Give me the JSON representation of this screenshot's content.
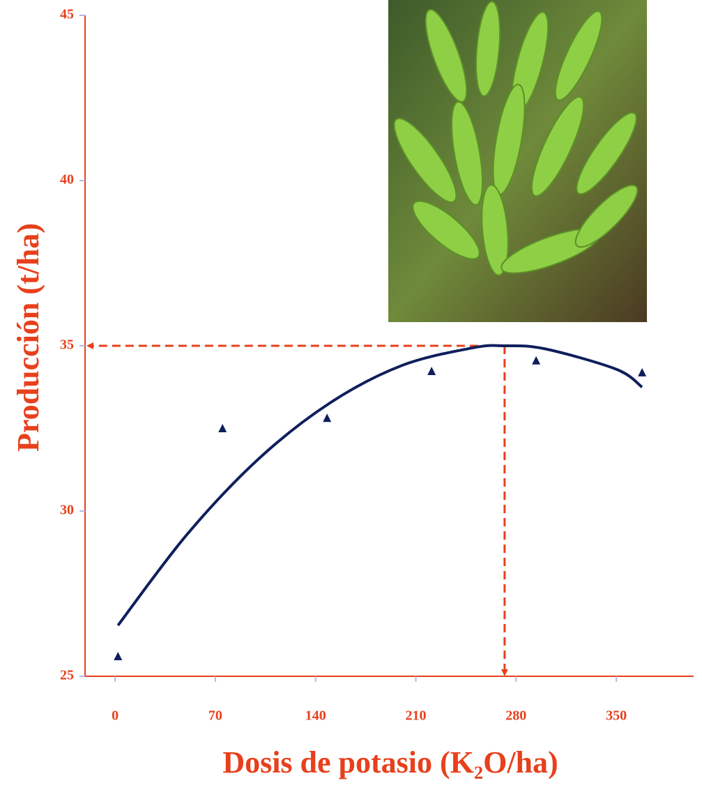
{
  "chart_data": {
    "type": "scatter",
    "x_label": "Dosis de potasio (K₂O/ha)",
    "y_label": "Producción (t/ha)",
    "xlim": [
      -21,
      404
    ],
    "ylim": [
      25,
      45
    ],
    "xticks": [
      0,
      70,
      140,
      210,
      280,
      350
    ],
    "yticks": [
      25,
      30,
      35,
      40,
      45
    ],
    "axis_color": "#e8401c",
    "series": [
      {
        "type": "scatter",
        "marker": "triangle",
        "color": "#0f1f5c",
        "x": [
          2,
          75,
          148,
          221,
          294,
          368
        ],
        "values": [
          25.59,
          32.49,
          32.8,
          34.22,
          34.54,
          34.18
        ]
      },
      {
        "type": "line",
        "color": "#0f1f5c",
        "x": [
          2,
          50,
          100,
          150,
          200,
          250,
          272,
          300,
          350,
          368
        ],
        "values": [
          26.54,
          29.28,
          31.57,
          33.27,
          34.4,
          34.94,
          35,
          34.91,
          34.29,
          33.75
        ]
      }
    ],
    "reference": {
      "x": 272,
      "y": 35,
      "color": "#e8401c"
    }
  }
}
